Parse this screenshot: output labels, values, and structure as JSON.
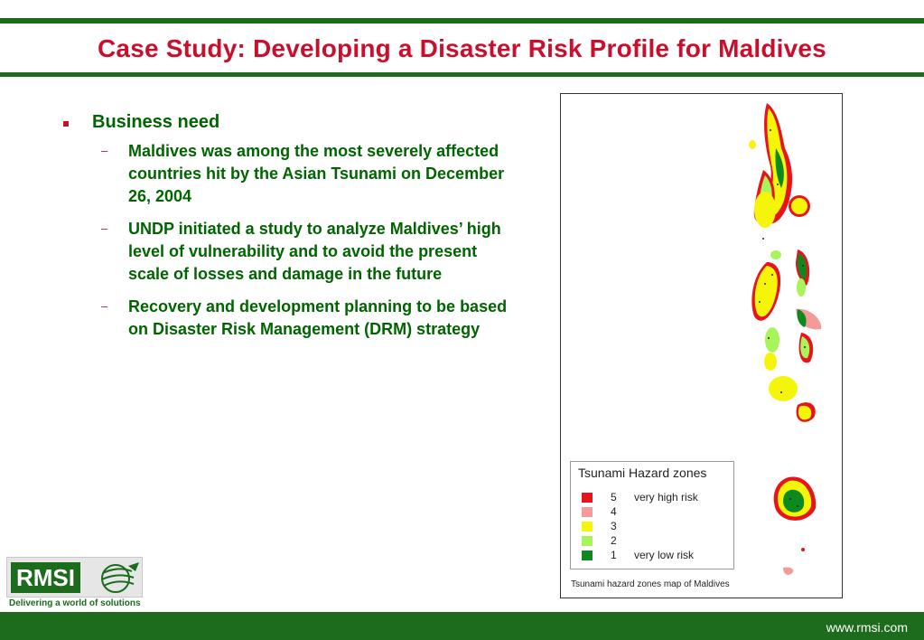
{
  "slide": {
    "title": "Case Study: Developing a Disaster Risk Profile for Maldives",
    "bullet": "Business need",
    "subbullets": [
      "Maldives was among the most severely affected countries hit by the Asian Tsunami on December 26, 2004",
      "UNDP initiated a study to analyze Maldives’ high level of vulnerability and to avoid the present scale of losses and damage in the future",
      "Recovery and development planning to be based on Disaster Risk Management (DRM) strategy"
    ],
    "dash": "–"
  },
  "map": {
    "legend_title": "Tsunami Hazard zones",
    "legend": [
      {
        "level": "5",
        "label": "very high risk",
        "color": "#e8141b"
      },
      {
        "level": "4",
        "label": "",
        "color": "#f59a9a"
      },
      {
        "level": "3",
        "label": "",
        "color": "#f5f50a"
      },
      {
        "level": "2",
        "label": "",
        "color": "#a7f55a"
      },
      {
        "level": "1",
        "label": "very low risk",
        "color": "#0c8a1e"
      }
    ],
    "caption": "Tsunami hazard zones map of Maldives"
  },
  "branding": {
    "logo": "RMSI",
    "tagline": "Delivering a world of solutions",
    "url": "www.rmsi.com"
  },
  "colors": {
    "brand_green": "#1d6b1d",
    "title_red": "#c8102e",
    "text_green": "#006400"
  }
}
